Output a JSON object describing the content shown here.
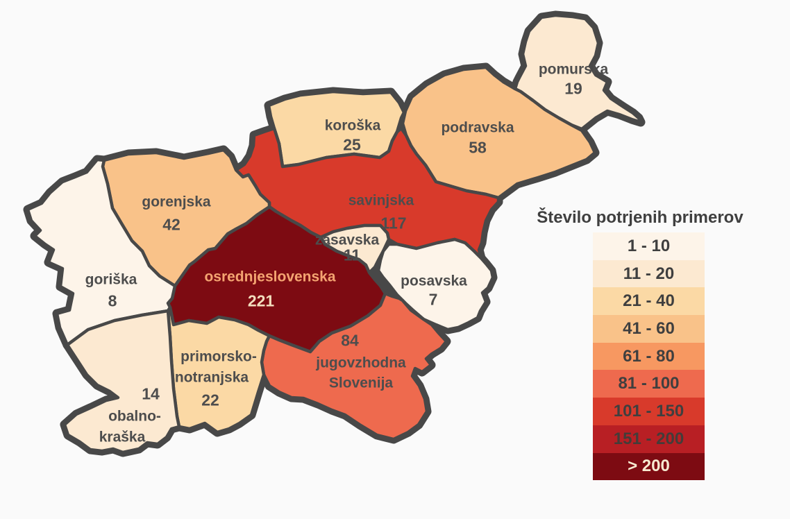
{
  "legend": {
    "title": "Število potrjenih primerov",
    "items": [
      {
        "label": "1 - 10",
        "color": "#fdf4e9"
      },
      {
        "label": "11 - 20",
        "color": "#fce9d1"
      },
      {
        "label": "21 - 40",
        "color": "#fbd9a5"
      },
      {
        "label": "41 - 60",
        "color": "#f9c289"
      },
      {
        "label": "61 - 80",
        "color": "#f79861"
      },
      {
        "label": "81 - 100",
        "color": "#ee6a4e"
      },
      {
        "label": "101 - 150",
        "color": "#d83a2b"
      },
      {
        "label": "151 - 200",
        "color": "#b81f24",
        "text_color": "#443c39"
      },
      {
        "label": "> 200",
        "color": "#7d0b12",
        "text_color": "#f7ead1"
      }
    ]
  },
  "map": {
    "border_color": "#484848",
    "regions": [
      {
        "id": "pomurska",
        "name": "pomurska",
        "value": 19,
        "color": "#fce9d1",
        "lines": [
          "pomurska",
          "19"
        ]
      },
      {
        "id": "podravska",
        "name": "podravska",
        "value": 58,
        "color": "#f9c289",
        "lines": [
          "podravska",
          "58"
        ]
      },
      {
        "id": "koroska",
        "name": "koroška",
        "value": 25,
        "color": "#fbd9a5",
        "lines": [
          "koroška",
          "25"
        ]
      },
      {
        "id": "savinjska",
        "name": "savinjska",
        "value": 117,
        "color": "#d83a2b",
        "lines": [
          "savinjska",
          "117"
        ]
      },
      {
        "id": "zasavska",
        "name": "zasavska",
        "value": 11,
        "color": "#fce9d1",
        "lines": [
          "zasavska",
          "11"
        ]
      },
      {
        "id": "posavska",
        "name": "posavska",
        "value": 7,
        "color": "#fdf4e9",
        "lines": [
          "posavska",
          "7"
        ]
      },
      {
        "id": "osrednjeslovenska",
        "name": "osrednjeslovenska",
        "value": 221,
        "color": "#7d0b12",
        "lines": [
          "osrednjeslovenska",
          "221"
        ],
        "line_colors": [
          "#f4a471",
          "#f3debe"
        ]
      },
      {
        "id": "gorenjska",
        "name": "gorenjska",
        "value": 42,
        "color": "#f9c289",
        "lines": [
          "gorenjska",
          "42"
        ]
      },
      {
        "id": "goriska",
        "name": "goriška",
        "value": 8,
        "color": "#fdf4e9",
        "lines": [
          "goriška",
          "8"
        ]
      },
      {
        "id": "jugovzhodna-slovenija",
        "name": "jugovzhodna Slovenija",
        "value": 84,
        "color": "#ee6a4e",
        "lines": [
          "84",
          "jugovzhodna",
          "Slovenija"
        ]
      },
      {
        "id": "primorsko-notranjska",
        "name": "primorsko-notranjska",
        "value": 22,
        "color": "#fbd9a5",
        "lines": [
          "primorsko-",
          "notranjska",
          "22"
        ]
      },
      {
        "id": "obalno-kraska",
        "name": "obalno-kraška",
        "value": 14,
        "color": "#fce9d1",
        "lines": [
          "14",
          "obalno-",
          "kraška"
        ]
      }
    ]
  },
  "chart_data": {
    "type": "heatmap",
    "subtype": "choropleth-map",
    "title": "Število potrjenih primerov",
    "categories": [
      "pomurska",
      "podravska",
      "koroška",
      "savinjska",
      "zasavska",
      "posavska",
      "osrednjeslovenska",
      "gorenjska",
      "goriška",
      "jugovzhodna Slovenija",
      "primorsko-notranjska",
      "obalno-kraška"
    ],
    "values": [
      19,
      58,
      25,
      117,
      11,
      7,
      221,
      42,
      8,
      84,
      22,
      14
    ],
    "legend_position": "right",
    "bins": [
      "1 - 10",
      "11 - 20",
      "21 - 40",
      "41 - 60",
      "61 - 80",
      "81 - 100",
      "101 - 150",
      "151 - 200",
      "> 200"
    ]
  }
}
